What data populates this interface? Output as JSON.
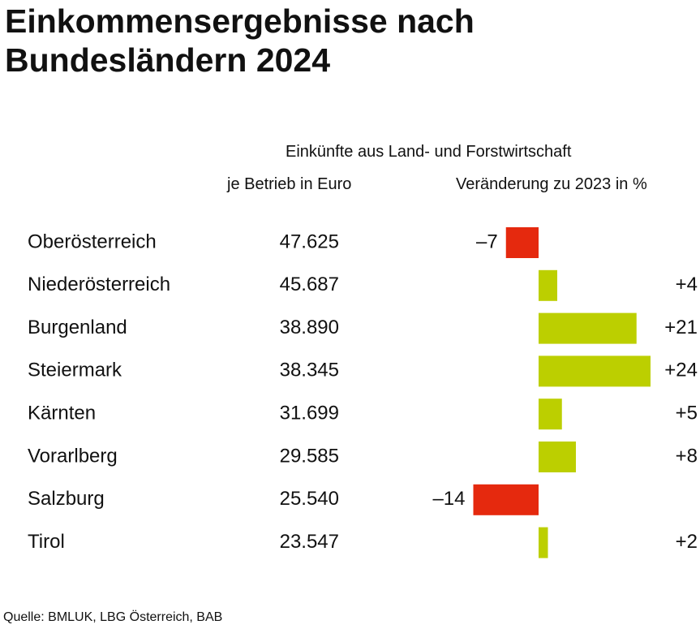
{
  "title_line1": "Einkommensergebnisse nach",
  "title_line2": "Bundesländern 2024",
  "header_main": "Einkünfte aus Land- und Forstwirtschaft",
  "header_eur": "je Betrieb in Euro",
  "header_change": "Veränderung zu 2023 in %",
  "source": "Quelle: BMLUK, LBG Österreich, BAB",
  "colors": {
    "negative": "#e5290e",
    "positive": "#bccf00"
  },
  "chart_data": {
    "type": "bar",
    "orientation": "horizontal",
    "categories": [
      "Oberösterreich",
      "Niederösterreich",
      "Burgenland",
      "Steiermark",
      "Kärnten",
      "Vorarlberg",
      "Salzburg",
      "Tirol"
    ],
    "income_per_farm_eur": [
      47625,
      45687,
      38890,
      38345,
      31699,
      29585,
      25540,
      23547
    ],
    "income_labels": [
      "47.625",
      "45.687",
      "38.890",
      "38.345",
      "31.699",
      "29.585",
      "25.540",
      "23.547"
    ],
    "change_percent": [
      -7,
      4,
      21,
      24,
      5,
      8,
      -14,
      2
    ],
    "change_labels": [
      "–7",
      "+4",
      "+21",
      "+24",
      "+5",
      "+8",
      "–14",
      "+2"
    ]
  }
}
